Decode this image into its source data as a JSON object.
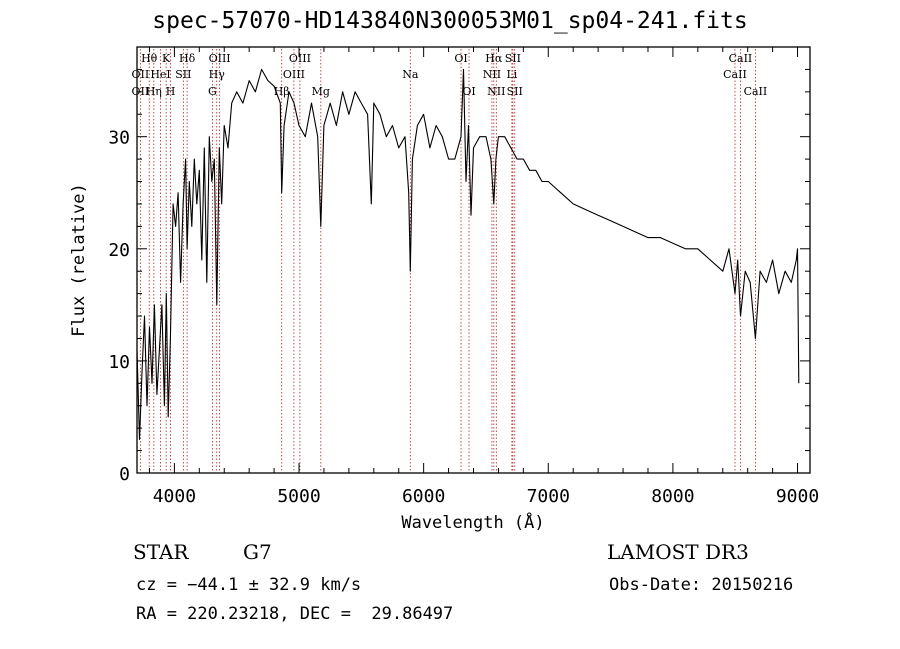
{
  "chart_data": {
    "type": "line",
    "title": "spec-57070-HD143840N300053M01_sp04-241.fits",
    "xlabel": "Wavelength (Å)",
    "ylabel": "Flux (relative)",
    "xlim": [
      3700,
      9100
    ],
    "ylim": [
      0,
      38
    ],
    "xticks": [
      4000,
      5000,
      6000,
      7000,
      8000,
      9000
    ],
    "yticks": [
      0,
      10,
      20,
      30
    ],
    "series": [
      {
        "name": "spectrum",
        "x": [
          3700,
          3720,
          3740,
          3760,
          3780,
          3800,
          3820,
          3840,
          3860,
          3880,
          3900,
          3920,
          3935,
          3950,
          3968,
          3990,
          4010,
          4030,
          4050,
          4070,
          4090,
          4102,
          4120,
          4140,
          4160,
          4180,
          4200,
          4220,
          4240,
          4260,
          4280,
          4300,
          4320,
          4340,
          4360,
          4380,
          4400,
          4430,
          4460,
          4500,
          4550,
          4600,
          4650,
          4700,
          4750,
          4800,
          4850,
          4861,
          4880,
          4920,
          4960,
          5000,
          5050,
          5100,
          5150,
          5175,
          5200,
          5250,
          5300,
          5350,
          5400,
          5450,
          5500,
          5550,
          5580,
          5600,
          5650,
          5700,
          5750,
          5800,
          5850,
          5880,
          5893,
          5910,
          5950,
          6000,
          6050,
          6100,
          6150,
          6200,
          6250,
          6300,
          6320,
          6340,
          6360,
          6380,
          6400,
          6450,
          6500,
          6540,
          6563,
          6580,
          6600,
          6650,
          6700,
          6750,
          6800,
          6850,
          6900,
          6950,
          7000,
          7050,
          7100,
          7150,
          7200,
          7300,
          7400,
          7500,
          7600,
          7700,
          7800,
          7900,
          8000,
          8100,
          8200,
          8300,
          8400,
          8450,
          8498,
          8520,
          8542,
          8580,
          8620,
          8662,
          8700,
          8750,
          8800,
          8850,
          8900,
          8950,
          8990,
          9000,
          9010
        ],
        "y": [
          11,
          3,
          9,
          14,
          6,
          13,
          8,
          15,
          7,
          11,
          15,
          6,
          16,
          5,
          12,
          24,
          22,
          25,
          17,
          24,
          28,
          20,
          26,
          22,
          28,
          24,
          27,
          19,
          29,
          17,
          30,
          26,
          28,
          15,
          29,
          24,
          31,
          29,
          33,
          34,
          33,
          35,
          34,
          36,
          35,
          34.5,
          33,
          25,
          31,
          34,
          33,
          31,
          30,
          33,
          30,
          22,
          31,
          33,
          31,
          34,
          32,
          34,
          33,
          32,
          24,
          33,
          32,
          30,
          31,
          29,
          30,
          25,
          18,
          28,
          31,
          32,
          29,
          31,
          30,
          28,
          28,
          30,
          36,
          26,
          31,
          23,
          29,
          30,
          30,
          28,
          24,
          28,
          30,
          30,
          29,
          28,
          28,
          27,
          27,
          26,
          26,
          25.5,
          25,
          24.5,
          24,
          23.5,
          23,
          22.5,
          22,
          21.5,
          21,
          21,
          20.5,
          20,
          20,
          19,
          18,
          20,
          16,
          19,
          14,
          18,
          17,
          12,
          18,
          17,
          19,
          16,
          18,
          17,
          19,
          20,
          8
        ]
      }
    ],
    "line_markers": [
      {
        "name": "Hθ",
        "x": 3798,
        "row": 1
      },
      {
        "name": "OII",
        "x": 3727,
        "row": 2
      },
      {
        "name": "OII",
        "x": 3727,
        "row": 3
      },
      {
        "name": "Hη",
        "x": 3835,
        "row": 3
      },
      {
        "name": "K",
        "x": 3934,
        "row": 1
      },
      {
        "name": "HeI",
        "x": 3889,
        "row": 2
      },
      {
        "name": "H",
        "x": 3969,
        "row": 3
      },
      {
        "name": "Hδ",
        "x": 4102,
        "row": 1
      },
      {
        "name": "SII",
        "x": 4072,
        "row": 2
      },
      {
        "name": "OIII",
        "x": 4363,
        "row": 1
      },
      {
        "name": "Hγ",
        "x": 4340,
        "row": 2
      },
      {
        "name": "G",
        "x": 4305,
        "row": 3
      },
      {
        "name": "Hβ",
        "x": 4861,
        "row": 3
      },
      {
        "name": "OIII",
        "x": 5007,
        "row": 1
      },
      {
        "name": "OIII",
        "x": 4959,
        "row": 2
      },
      {
        "name": "Mg",
        "x": 5175,
        "row": 3
      },
      {
        "name": "Na",
        "x": 5893,
        "row": 2
      },
      {
        "name": "OI",
        "x": 6300,
        "row": 1
      },
      {
        "name": "OI",
        "x": 6364,
        "row": 3
      },
      {
        "name": "Hα",
        "x": 6563,
        "row": 1
      },
      {
        "name": "SII",
        "x": 6716,
        "row": 1
      },
      {
        "name": "NII",
        "x": 6548,
        "row": 2
      },
      {
        "name": "Li",
        "x": 6708,
        "row": 2
      },
      {
        "name": "NII",
        "x": 6583,
        "row": 3
      },
      {
        "name": "SII",
        "x": 6731,
        "row": 3
      },
      {
        "name": "CaII",
        "x": 8542,
        "row": 1
      },
      {
        "name": "CaII",
        "x": 8498,
        "row": 2
      },
      {
        "name": "CaII",
        "x": 8662,
        "row": 3
      }
    ]
  },
  "info": {
    "obj_class": "STAR",
    "subclass": "G7",
    "survey": "LAMOST DR3",
    "cz": "cz = −44.1 ± 32.9 km/s",
    "obs_date": "Obs-Date: 20150216",
    "radec": "RA = 220.23218, DEC =  29.86497"
  }
}
